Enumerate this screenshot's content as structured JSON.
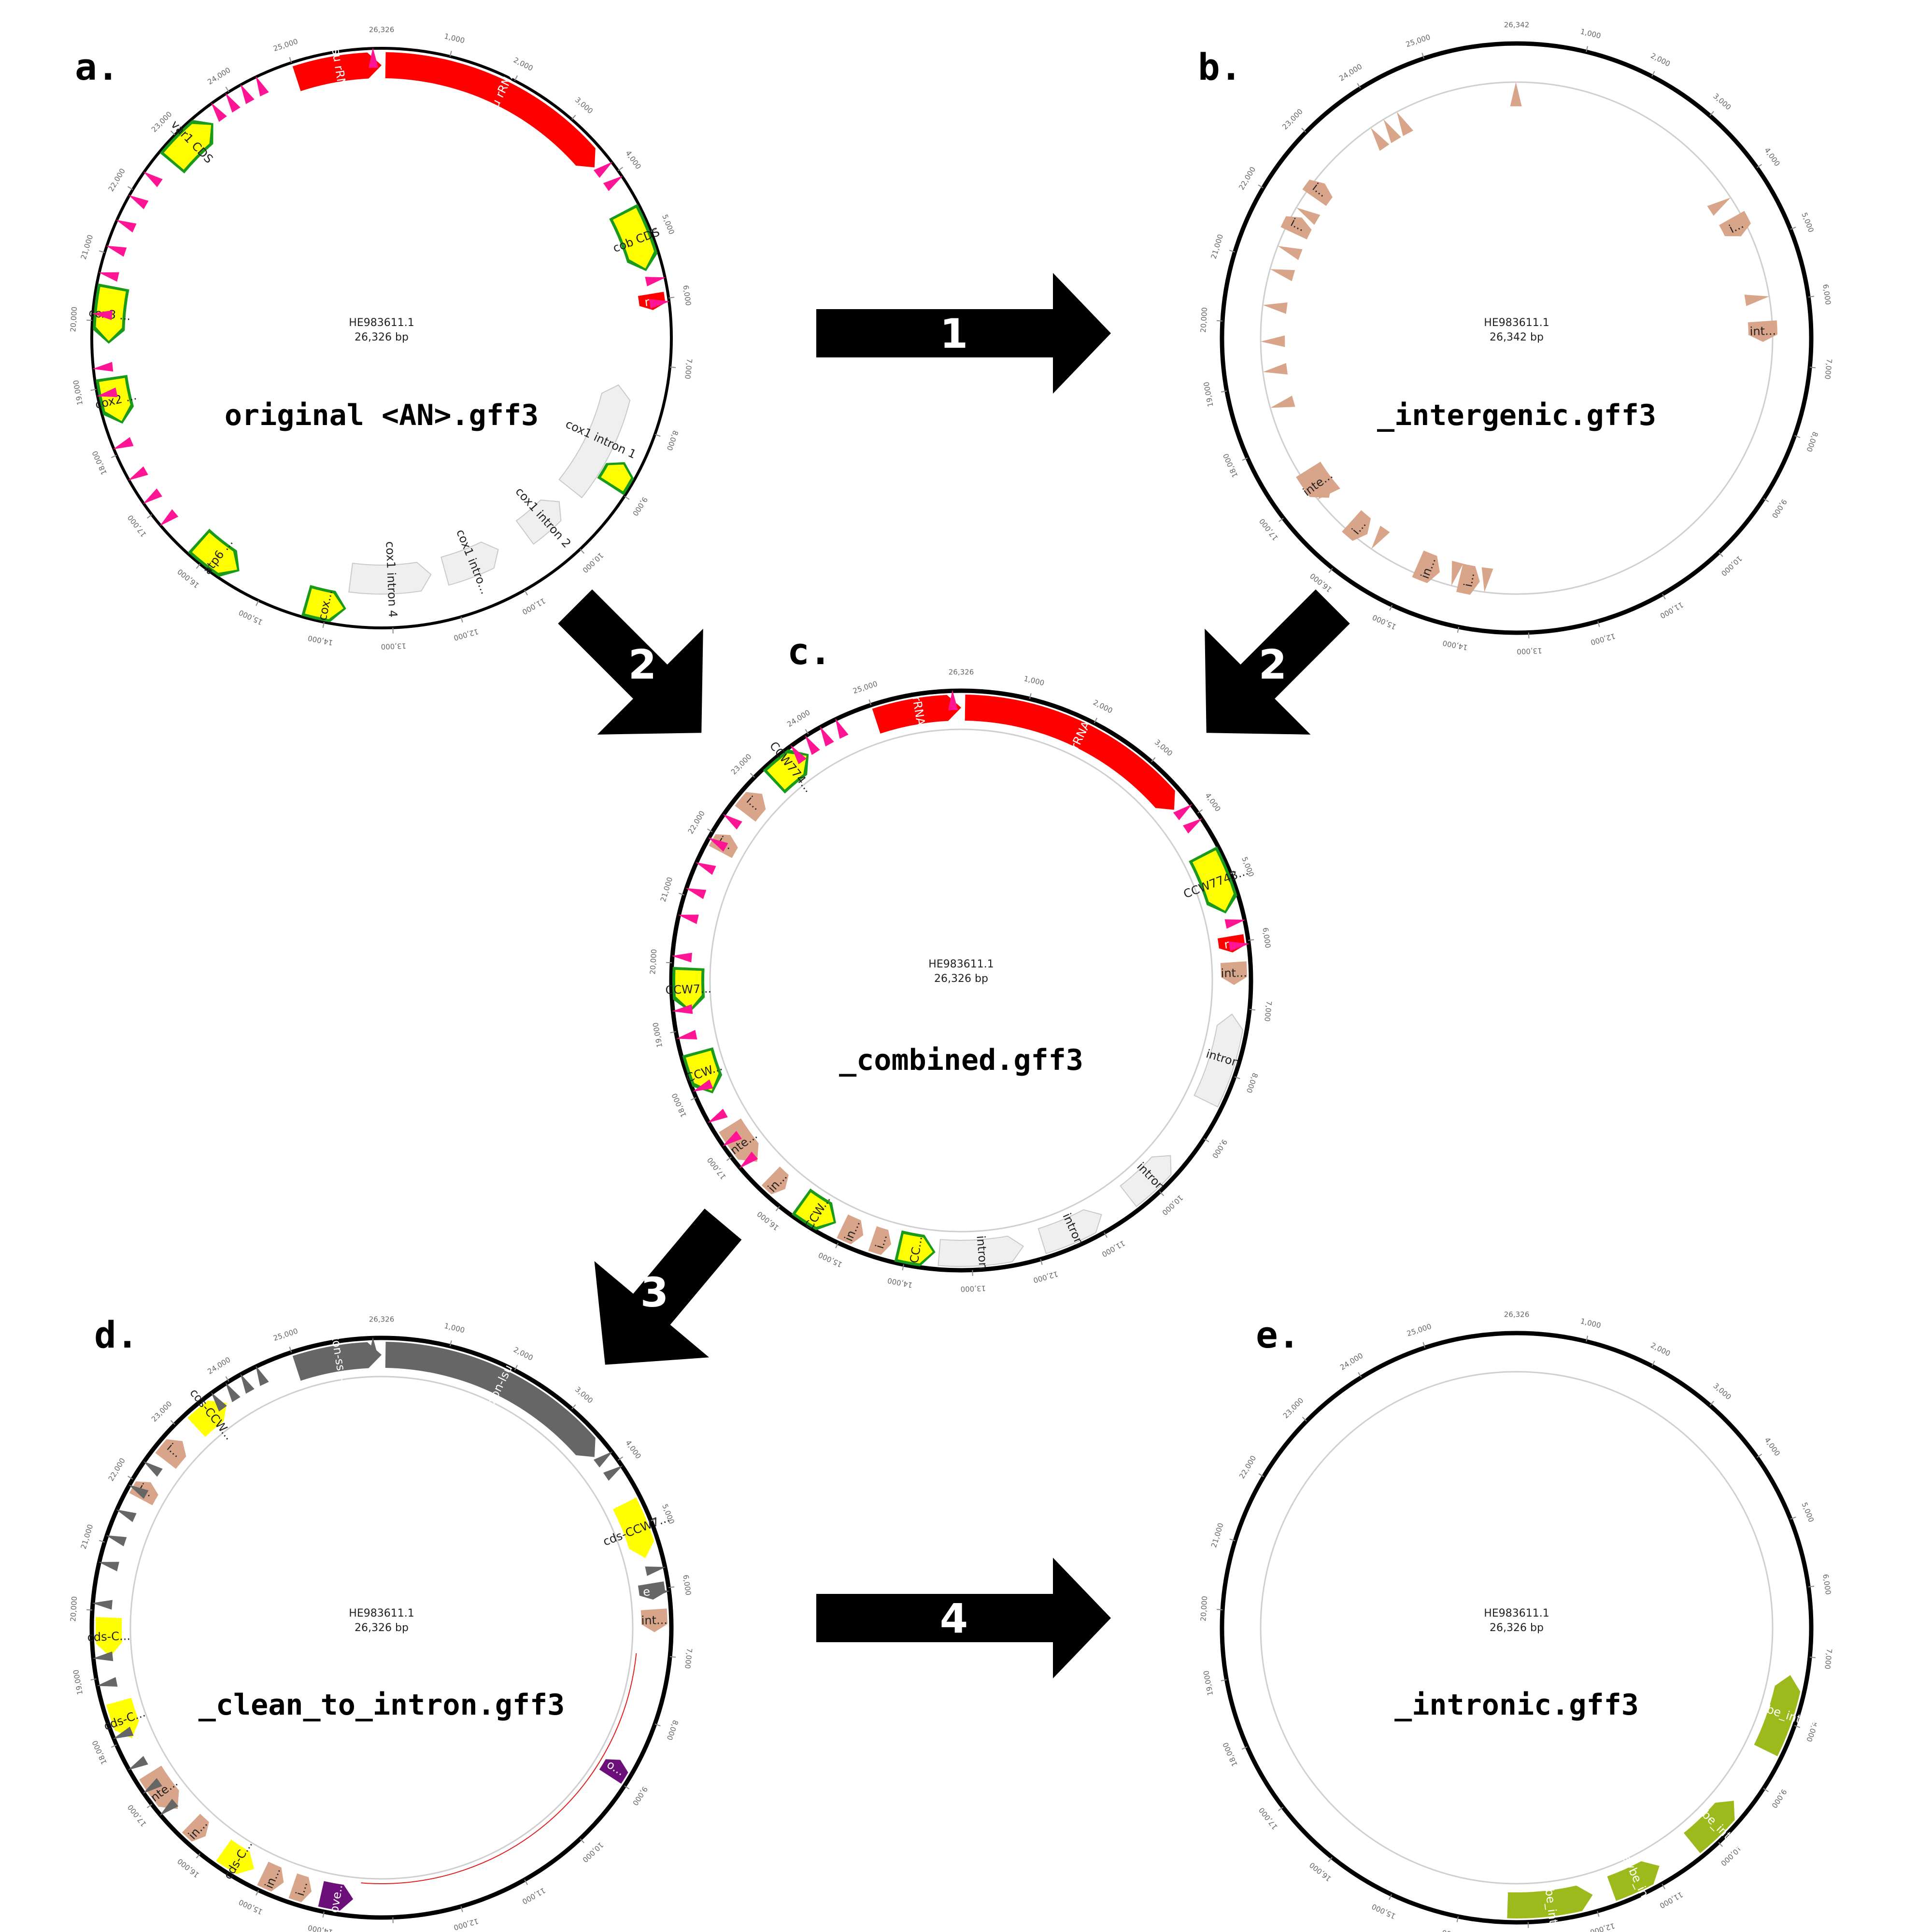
{
  "colors": {
    "rRNA": "#ff0000",
    "cds": "#ffff00",
    "gene": "#1a9a1a",
    "intron_track": "#efefef",
    "intergenic": "#d8a48a",
    "trna": "#ff1493",
    "trna_dark": "#666666",
    "exon": "#666666",
    "overlap": "#6d0f7a",
    "maybe_intron": "#9cba1b",
    "arrow": "#000000"
  },
  "panels": {
    "a": {
      "letter": "a.",
      "filename": "original <AN>.gff3",
      "accession": "HE983611.1",
      "length_label": "26,326 bp",
      "total_bp": 26326,
      "top_tick": "26,326",
      "features": [
        {
          "start": 25000,
          "end": 26326,
          "track": "main",
          "kind": "rRNA",
          "label": "ssu rRNA",
          "strand": 1
        },
        {
          "start": 60,
          "end": 3750,
          "track": "main",
          "kind": "rRNA",
          "label": "lsu rRNA",
          "strand": 1
        },
        {
          "start": 4600,
          "end": 5500,
          "track": "main",
          "kind": "cds",
          "label": "cob CDS",
          "strand": 1
        },
        {
          "start": 5900,
          "end": 6150,
          "track": "main",
          "kind": "rRNA",
          "label": "r...",
          "strand": 1
        },
        {
          "start": 7400,
          "end": 9400,
          "track": "inner",
          "kind": "intron",
          "label": "cox1 intron 1",
          "strand": -1
        },
        {
          "start": 8600,
          "end": 8950,
          "track": "main",
          "kind": "cds",
          "label": "",
          "strand": -1
        },
        {
          "start": 9700,
          "end": 10500,
          "track": "inner",
          "kind": "intron",
          "label": "cox1 intron 2",
          "strand": -1
        },
        {
          "start": 11050,
          "end": 12050,
          "track": "inner",
          "kind": "intron",
          "label": "cox1 intro...",
          "strand": -1
        },
        {
          "start": 12300,
          "end": 13700,
          "track": "inner",
          "kind": "intron",
          "label": "cox1 intron 4",
          "strand": -1
        },
        {
          "start": 13750,
          "end": 14300,
          "track": "main",
          "kind": "cds",
          "label": "cox...",
          "strand": -1
        },
        {
          "start": 15500,
          "end": 16200,
          "track": "main",
          "kind": "cds",
          "label": "atp6 ...",
          "strand": -1
        },
        {
          "start": 18450,
          "end": 19100,
          "track": "main",
          "kind": "cds",
          "label": "cox2 ...",
          "strand": -1
        },
        {
          "start": 19700,
          "end": 20500,
          "track": "main",
          "kind": "cds",
          "label": "cox3 ...",
          "strand": -1
        },
        {
          "start": 22700,
          "end": 23500,
          "track": "main",
          "kind": "cds",
          "label": "var1 CDS",
          "strand": 1
        }
      ]
    },
    "b": {
      "letter": "b.",
      "filename": "_intergenic.gff3",
      "accession": "HE983611.1",
      "length_label": "26,342 bp",
      "total_bp": 26342,
      "top_tick": "26,342",
      "features": [
        {
          "start": 6300,
          "end": 6650,
          "track": "inner",
          "kind": "intergenic",
          "label": "int...",
          "strand": 1
        },
        {
          "start": 13800,
          "end": 14150,
          "track": "inner",
          "kind": "intergenic",
          "label": "i...",
          "strand": -1
        },
        {
          "start": 14500,
          "end": 14900,
          "track": "inner",
          "kind": "intergenic",
          "label": "in...",
          "strand": -1
        },
        {
          "start": 15900,
          "end": 16250,
          "track": "inner",
          "kind": "intergenic",
          "label": "i...",
          "strand": -1
        },
        {
          "start": 16800,
          "end": 17400,
          "track": "inner",
          "kind": "intergenic",
          "label": "inte...",
          "strand": -1
        },
        {
          "start": 21600,
          "end": 21900,
          "track": "inner",
          "kind": "intergenic",
          "label": "i...",
          "strand": 1
        },
        {
          "start": 22300,
          "end": 22600,
          "track": "inner",
          "kind": "intergenic",
          "label": "i...",
          "strand": 1
        },
        {
          "start": 4450,
          "end": 4800,
          "track": "inner",
          "kind": "intergenic",
          "label": "i...",
          "strand": 1
        }
      ]
    },
    "c": {
      "letter": "c.",
      "filename": "_combined.gff3",
      "accession": "HE983611.1",
      "length_label": "26,326 bp",
      "total_bp": 26326,
      "top_tick": "26,326",
      "features": [
        {
          "start": 25000,
          "end": 26326,
          "track": "main",
          "kind": "rRNA",
          "label": "rRNA",
          "strand": 1
        },
        {
          "start": 60,
          "end": 3750,
          "track": "main",
          "kind": "rRNA",
          "label": "rRNA",
          "strand": 1
        },
        {
          "start": 4600,
          "end": 5500,
          "track": "main",
          "kind": "cds",
          "label": "CCW7743...",
          "strand": 1
        },
        {
          "start": 5900,
          "end": 6150,
          "track": "main",
          "kind": "rRNA",
          "label": "r...",
          "strand": 1
        },
        {
          "start": 6300,
          "end": 6650,
          "track": "main",
          "kind": "intergenic",
          "label": "int...",
          "strand": 1
        },
        {
          "start": 7100,
          "end": 8500,
          "track": "main",
          "kind": "intron",
          "label": "intron",
          "strand": -1
        },
        {
          "start": 9500,
          "end": 10400,
          "track": "main",
          "kind": "intron",
          "label": "intron",
          "strand": -1
        },
        {
          "start": 10900,
          "end": 11900,
          "track": "main",
          "kind": "intron",
          "label": "intron",
          "strand": -1
        },
        {
          "start": 12200,
          "end": 13500,
          "track": "main",
          "kind": "intron",
          "label": "intron",
          "strand": -1
        },
        {
          "start": 13600,
          "end": 14100,
          "track": "main",
          "kind": "cds",
          "label": "CC...",
          "strand": -1
        },
        {
          "start": 14250,
          "end": 14550,
          "track": "main",
          "kind": "intergenic",
          "label": "i...",
          "strand": -1
        },
        {
          "start": 14700,
          "end": 15050,
          "track": "main",
          "kind": "intergenic",
          "label": "in...",
          "strand": -1
        },
        {
          "start": 15200,
          "end": 15750,
          "track": "main",
          "kind": "cds",
          "label": "CCW...",
          "strand": -1
        },
        {
          "start": 16100,
          "end": 16400,
          "track": "main",
          "kind": "intergenic",
          "label": "in...",
          "strand": -1
        },
        {
          "start": 16700,
          "end": 17400,
          "track": "main",
          "kind": "intergenic",
          "label": "inte...",
          "strand": -1
        },
        {
          "start": 18000,
          "end": 18600,
          "track": "main",
          "kind": "cds",
          "label": "CCW...",
          "strand": -1
        },
        {
          "start": 19300,
          "end": 19900,
          "track": "main",
          "kind": "cds",
          "label": "CCW7...",
          "strand": -1
        },
        {
          "start": 21800,
          "end": 22100,
          "track": "main",
          "kind": "intergenic",
          "label": "i...",
          "strand": 1
        },
        {
          "start": 22500,
          "end": 22900,
          "track": "main",
          "kind": "intergenic",
          "label": "i...",
          "strand": 1
        },
        {
          "start": 23200,
          "end": 23800,
          "track": "main",
          "kind": "cds",
          "label": "CCW774...",
          "strand": 1
        }
      ]
    },
    "d": {
      "letter": "d.",
      "filename": "_clean_to_intron.gff3",
      "accession": "HE983611.1",
      "length_label": "26,326 bp",
      "total_bp": 26326,
      "top_tick": "26,326",
      "features": [
        {
          "start": 25000,
          "end": 26326,
          "track": "main",
          "kind": "exon",
          "label": "exon-ssu-1",
          "strand": 1
        },
        {
          "start": 60,
          "end": 3750,
          "track": "main",
          "kind": "exon",
          "label": "exon-lsu-1",
          "strand": 1
        },
        {
          "start": 4600,
          "end": 5500,
          "track": "main",
          "kind": "cds",
          "label": "cds-CCW7...",
          "strand": 1
        },
        {
          "start": 5900,
          "end": 6150,
          "track": "main",
          "kind": "exon",
          "label": "e...",
          "strand": 1
        },
        {
          "start": 6300,
          "end": 6650,
          "track": "main",
          "kind": "intergenic",
          "label": "int...",
          "strand": 1
        },
        {
          "start": 8700,
          "end": 9000,
          "track": "main",
          "kind": "overlap",
          "label": "o...",
          "strand": -1
        },
        {
          "start": 13600,
          "end": 14100,
          "track": "main",
          "kind": "overlap",
          "label": "ove...",
          "strand": -1
        },
        {
          "start": 14250,
          "end": 14550,
          "track": "main",
          "kind": "intergenic",
          "label": "i...",
          "strand": -1
        },
        {
          "start": 14700,
          "end": 15050,
          "track": "main",
          "kind": "intergenic",
          "label": "in...",
          "strand": -1
        },
        {
          "start": 15200,
          "end": 15750,
          "track": "main",
          "kind": "cds",
          "label": "cds-C...",
          "strand": -1
        },
        {
          "start": 16100,
          "end": 16400,
          "track": "main",
          "kind": "intergenic",
          "label": "in...",
          "strand": -1
        },
        {
          "start": 16700,
          "end": 17400,
          "track": "main",
          "kind": "intergenic",
          "label": "inte...",
          "strand": -1
        },
        {
          "start": 18000,
          "end": 18600,
          "track": "main",
          "kind": "cds",
          "label": "cds-C...",
          "strand": -1
        },
        {
          "start": 19300,
          "end": 19900,
          "track": "main",
          "kind": "cds",
          "label": "cds-C...",
          "strand": -1
        },
        {
          "start": 21800,
          "end": 22100,
          "track": "main",
          "kind": "intergenic",
          "label": "i...",
          "strand": 1
        },
        {
          "start": 22500,
          "end": 22900,
          "track": "main",
          "kind": "intergenic",
          "label": "i...",
          "strand": 1
        },
        {
          "start": 23200,
          "end": 23800,
          "track": "main",
          "kind": "cds",
          "label": "cds-CCW...",
          "strand": 1
        }
      ]
    },
    "e": {
      "letter": "e.",
      "filename": "_intronic.gff3",
      "accession": "HE983611.1",
      "length_label": "26,326 bp",
      "total_bp": 26326,
      "top_tick": "26,326",
      "features": [
        {
          "start": 7300,
          "end": 8500,
          "track": "main",
          "kind": "maybe_intron",
          "label": "maybe_intron",
          "strand": -1
        },
        {
          "start": 9400,
          "end": 10300,
          "track": "main",
          "kind": "maybe_intron",
          "label": "maybe_intron",
          "strand": -1
        },
        {
          "start": 10900,
          "end": 11700,
          "track": "main",
          "kind": "maybe_intron",
          "label": "maybe_int...",
          "strand": -1
        },
        {
          "start": 12000,
          "end": 13300,
          "track": "main",
          "kind": "maybe_intron",
          "label": "maybe_intron",
          "strand": -1
        }
      ]
    }
  },
  "tick_labels": [
    "1,000",
    "2,000",
    "3,000",
    "4,000",
    "5,000",
    "6,000",
    "7,000",
    "8,000",
    "9,000",
    "10,000",
    "11,000",
    "12,000",
    "13,000",
    "14,000",
    "15,000",
    "16,000",
    "17,000",
    "18,000",
    "19,000",
    "20,000",
    "21,000",
    "22,000",
    "23,000",
    "24,000",
    "25,000"
  ],
  "tick_values": [
    1000,
    2000,
    3000,
    4000,
    5000,
    6000,
    7000,
    8000,
    9000,
    10000,
    11000,
    12000,
    13000,
    14000,
    15000,
    16000,
    17000,
    18000,
    19000,
    20000,
    21000,
    22000,
    23000,
    24000,
    25000
  ],
  "steps": [
    {
      "id": "1",
      "label": "1"
    },
    {
      "id": "2a",
      "label": "2"
    },
    {
      "id": "2b",
      "label": "2"
    },
    {
      "id": "3",
      "label": "3"
    },
    {
      "id": "4",
      "label": "4"
    }
  ]
}
